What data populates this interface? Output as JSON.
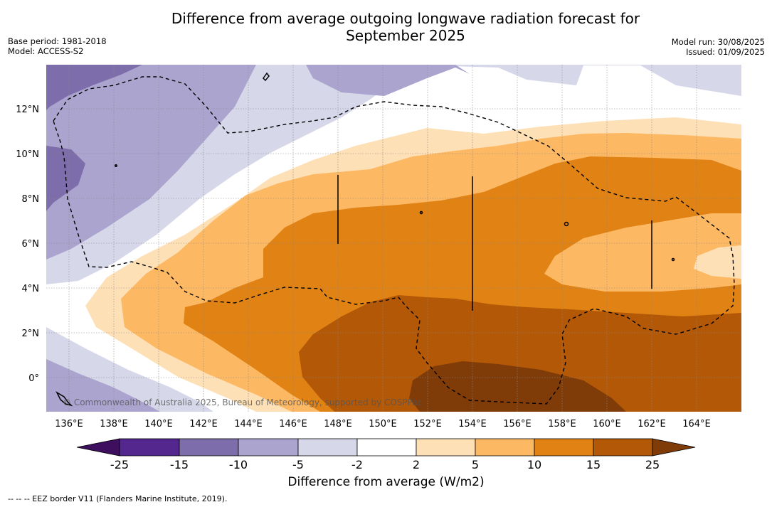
{
  "title_line1": "Difference from average outgoing longwave radiation forecast for",
  "title_line2": "September 2025",
  "meta_left": {
    "base_period": "Base period: 1981-2018",
    "model": "Model: ACCESS-S2"
  },
  "meta_right": {
    "model_run": "Model run: 30/08/2025",
    "issued": "Issued: 01/09/2025"
  },
  "map": {
    "lat_labels": [
      "12°N",
      "10°N",
      "8°N",
      "6°N",
      "4°N",
      "2°N",
      "0°"
    ],
    "lon_labels": [
      "136°E",
      "138°E",
      "140°E",
      "142°E",
      "144°E",
      "146°E",
      "148°E",
      "150°E",
      "152°E",
      "154°E",
      "156°E",
      "158°E",
      "160°E",
      "162°E",
      "164°E"
    ],
    "copyright": "© Commonwealth of Australia 2025, Bureau of Meteorology, supported by COSPPac"
  },
  "colorbar": {
    "labels": [
      "-25",
      "-15",
      "-10",
      "-5",
      "-2",
      "2",
      "5",
      "10",
      "15",
      "25"
    ],
    "colors": [
      "#3f0f5f",
      "#54278f",
      "#7d6daa",
      "#aba4cf",
      "#d7d7ea",
      "#ffffff",
      "#fee0b6",
      "#fdb863",
      "#e08214",
      "#b35806",
      "#7f3b08"
    ],
    "title": "Difference from average (W/m2)"
  },
  "footnote": "--  --  -- EEZ border V11 (Flanders Marine Institute, 2019)."
}
